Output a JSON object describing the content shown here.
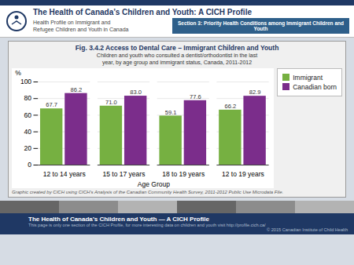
{
  "chart_data": {
    "type": "bar",
    "title": "Fig. 3.4.2 Access to Dental Care – Immigrant Children and Youth",
    "subtitle": "Children and youth who consulted a dentist/orthodontist in the last\nyear, by age group and immigrant status, Canada, 2011-2012",
    "xlabel": "Age Group",
    "ylabel": "%",
    "categories": [
      "12 to 14 years",
      "15 to 17 years",
      "18 to 19 years",
      "12 to 19 years"
    ],
    "series": [
      {
        "name": "Immigrant",
        "color": "#76b041",
        "values": [
          67.7,
          71.0,
          59.1,
          66.2
        ],
        "value_labels": [
          "67.7",
          "71.0",
          "59.1",
          "66.2"
        ]
      },
      {
        "name": "Canadian born",
        "color": "#7b2d8b",
        "values": [
          86.2,
          83.0,
          77.6,
          82.9
        ],
        "value_labels": [
          "86.2",
          "83.0",
          "77.6",
          "82.9"
        ]
      }
    ],
    "ylim": [
      0,
      100
    ],
    "yticks": [
      0,
      20,
      40,
      60,
      80,
      100
    ],
    "grid": true,
    "legend": "upper right",
    "data_labels": true,
    "annotations": [
      "The Health of Canada’s Children and Youth: A CICH Profile",
      "Health Profile on Immigrant and\nRefugee Children and Youth in Canada",
      "Section 3: Priority Health Conditions among Immigrant Children and Youth",
      "Graphic created by CICH using CICH's Analysis of the Canadian Community Health Survey, 2011-2012 Public Use Microdata File.",
      "The Health of Canada’s Children and Youth — A CICH Profile",
      "This page is only one section of the CICH Profile, for more interesting data on children and youth visit http://profile.cich.ca/",
      "© 2015 Canadian Institute of Child Health"
    ]
  }
}
